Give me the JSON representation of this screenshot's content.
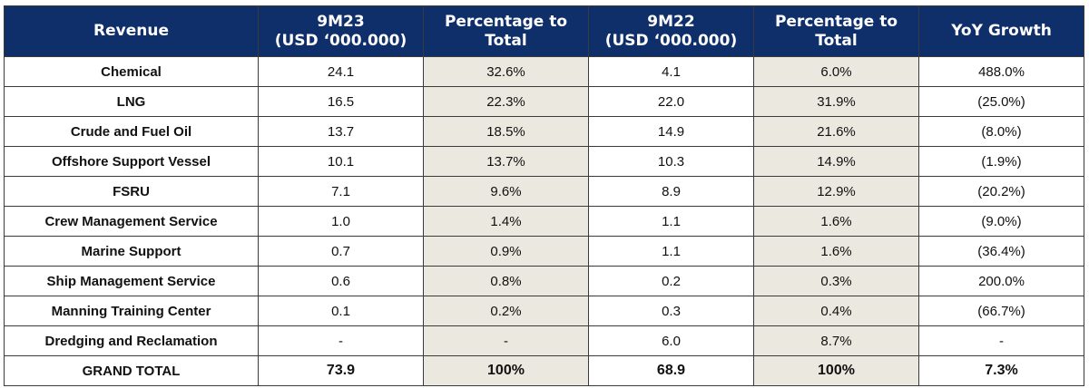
{
  "table": {
    "headers": [
      {
        "line1": "Revenue",
        "line2": ""
      },
      {
        "line1": "9M23",
        "line2": "(USD ‘000.000)"
      },
      {
        "line1": "Percentage to",
        "line2": "Total"
      },
      {
        "line1": "9M22",
        "line2": "(USD ‘000.000)"
      },
      {
        "line1": "Percentage to",
        "line2": "Total"
      },
      {
        "line1": "YoY Growth",
        "line2": ""
      }
    ],
    "rows": [
      {
        "label": "Chemical",
        "m23": "24.1",
        "pct23": "32.6%",
        "m22": "4.1",
        "pct22": "6.0%",
        "yoy": "488.0%"
      },
      {
        "label": "LNG",
        "m23": "16.5",
        "pct23": "22.3%",
        "m22": "22.0",
        "pct22": "31.9%",
        "yoy": "(25.0%)"
      },
      {
        "label": "Crude and Fuel Oil",
        "m23": "13.7",
        "pct23": "18.5%",
        "m22": "14.9",
        "pct22": "21.6%",
        "yoy": "(8.0%)"
      },
      {
        "label": "Offshore Support Vessel",
        "m23": "10.1",
        "pct23": "13.7%",
        "m22": "10.3",
        "pct22": "14.9%",
        "yoy": "(1.9%)"
      },
      {
        "label": "FSRU",
        "m23": "7.1",
        "pct23": "9.6%",
        "m22": "8.9",
        "pct22": "12.9%",
        "yoy": "(20.2%)"
      },
      {
        "label": "Crew Management Service",
        "m23": "1.0",
        "pct23": "1.4%",
        "m22": "1.1",
        "pct22": "1.6%",
        "yoy": "(9.0%)"
      },
      {
        "label": "Marine Support",
        "m23": "0.7",
        "pct23": "0.9%",
        "m22": "1.1",
        "pct22": "1.6%",
        "yoy": "(36.4%)"
      },
      {
        "label": "Ship Management Service",
        "m23": "0.6",
        "pct23": "0.8%",
        "m22": "0.2",
        "pct22": "0.3%",
        "yoy": "200.0%"
      },
      {
        "label": "Manning Training Center",
        "m23": "0.1",
        "pct23": "0.2%",
        "m22": "0.3",
        "pct22": "0.4%",
        "yoy": "(66.7%)"
      },
      {
        "label": "Dredging and Reclamation",
        "m23": "-",
        "pct23": "-",
        "m22": "6.0",
        "pct22": "8.7%",
        "yoy": "-"
      }
    ],
    "total": {
      "label": "GRAND TOTAL",
      "m23": "73.9",
      "pct23": "100%",
      "m22": "68.9",
      "pct22": "100%",
      "yoy": "7.3%"
    }
  },
  "colors": {
    "header_bg": "#0f2f6b",
    "header_text": "#ffffff",
    "shaded_col": "#ebe8df",
    "border": "#3a3a3a"
  }
}
